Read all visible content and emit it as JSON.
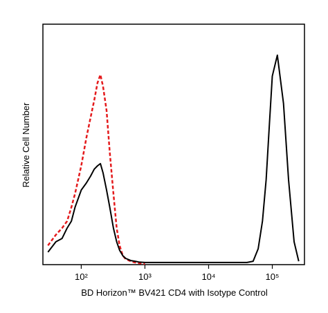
{
  "chart_data": {
    "type": "line",
    "xlabel": "BD Horizon™ BV421 CD4 with Isotype Control",
    "ylabel": "Relative Cell Number",
    "xscale": "log",
    "xlim": [
      25,
      320000
    ],
    "ylim": [
      0,
      100
    ],
    "xticks": [
      {
        "value": 100,
        "label": "10²"
      },
      {
        "value": 1000,
        "label": "10³"
      },
      {
        "value": 10000,
        "label": "10⁴"
      },
      {
        "value": 100000,
        "label": "10⁵"
      }
    ],
    "x": [
      30,
      40,
      50,
      60,
      70,
      80,
      100,
      120,
      140,
      160,
      180,
      200,
      220,
      250,
      280,
      320,
      360,
      400,
      450,
      500,
      600,
      700,
      800,
      1000,
      1500,
      2000,
      3000,
      5000,
      10000,
      20000,
      30000,
      40000,
      50000,
      60000,
      70000,
      80000,
      90000,
      100000,
      120000,
      150000,
      180000,
      220000,
      260000
    ],
    "series": [
      {
        "color": "#e41a1c",
        "dash": true,
        "values": [
          8.0,
          12.4,
          15.2,
          18.1,
          23.9,
          29.6,
          41.1,
          52.6,
          61.2,
          68.4,
          75.6,
          79.0,
          74.1,
          64.1,
          46.8,
          29.6,
          15.2,
          8.0,
          3.7,
          2.3,
          1.4,
          0.9,
          0.6,
          0.3,
          null,
          null,
          null,
          null,
          null,
          null,
          null,
          null,
          null,
          null,
          null,
          null,
          null,
          null,
          null,
          null,
          null,
          null,
          null
        ]
      },
      {
        "color": "#000000",
        "dash": false,
        "values": [
          5.2,
          9.5,
          10.9,
          15.2,
          18.1,
          23.9,
          31.0,
          33.9,
          36.8,
          39.7,
          41.1,
          42.0,
          38.2,
          31.0,
          23.9,
          15.2,
          9.5,
          6.0,
          3.7,
          2.6,
          1.7,
          1.4,
          1.1,
          0.9,
          0.9,
          0.9,
          0.9,
          0.9,
          0.9,
          0.9,
          0.9,
          0.9,
          1.4,
          6.6,
          18.1,
          35.3,
          58.3,
          78.4,
          87.1,
          67,
          35.3,
          9.5,
          1.4
        ]
      }
    ]
  }
}
